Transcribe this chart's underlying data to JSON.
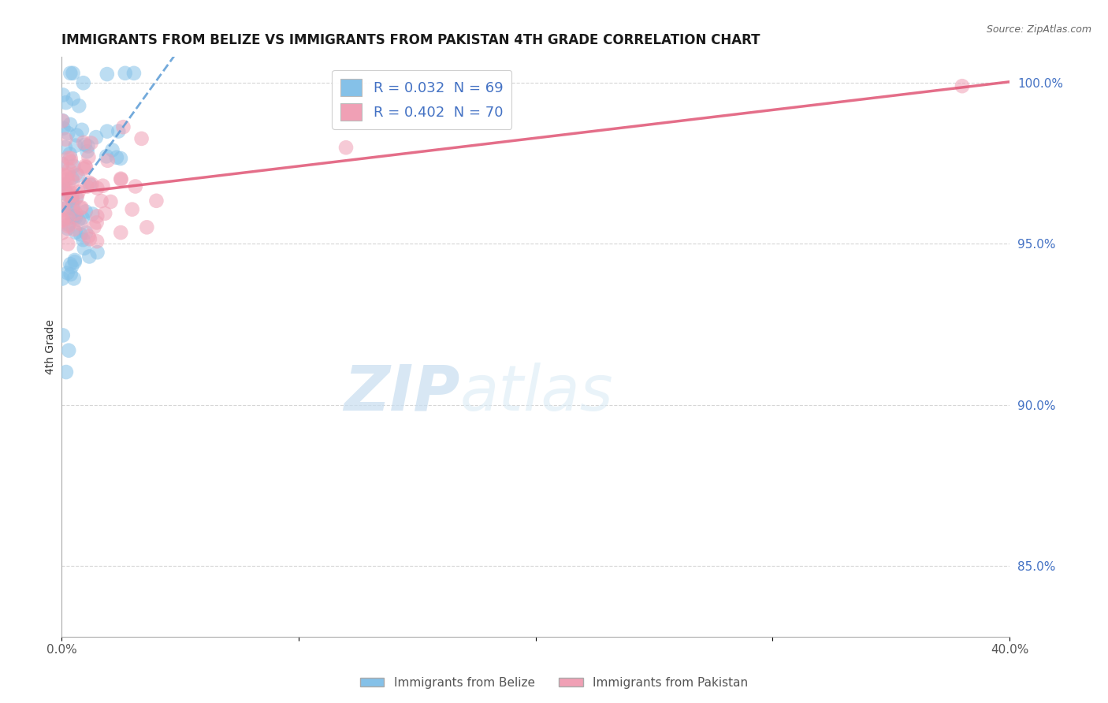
{
  "title": "IMMIGRANTS FROM BELIZE VS IMMIGRANTS FROM PAKISTAN 4TH GRADE CORRELATION CHART",
  "source_text": "Source: ZipAtlas.com",
  "ylabel": "4th Grade",
  "xlim": [
    0.0,
    0.4
  ],
  "ylim": [
    0.828,
    1.008
  ],
  "x_tick_positions": [
    0.0,
    0.4
  ],
  "x_tick_labels": [
    "0.0%",
    "40.0%"
  ],
  "y_ticks": [
    0.85,
    0.9,
    0.95,
    1.0
  ],
  "y_tick_labels": [
    "85.0%",
    "90.0%",
    "95.0%",
    "100.0%"
  ],
  "color_belize": "#85C1E8",
  "color_pakistan": "#F0A0B5",
  "color_belize_line": "#5B9BD5",
  "color_pakistan_line": "#E05575",
  "R_belize": 0.032,
  "N_belize": 69,
  "R_pakistan": 0.402,
  "N_pakistan": 70,
  "watermark_zip": "ZIP",
  "watermark_atlas": "atlas",
  "legend_label_belize": "Immigrants from Belize",
  "legend_label_pakistan": "Immigrants from Pakistan"
}
